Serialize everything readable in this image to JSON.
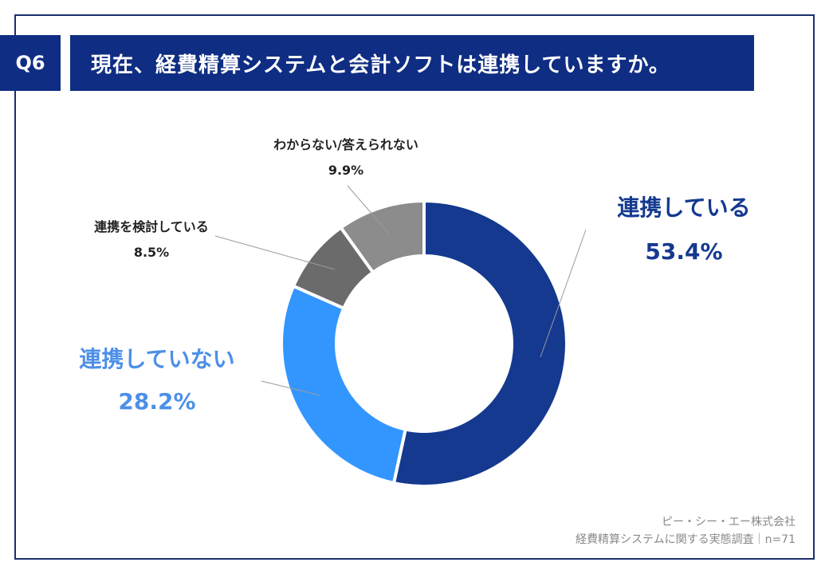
{
  "header": {
    "question_number": "Q6",
    "title": "現在、経費精算システムと会計ソフトは連携していますか。"
  },
  "chart_data": {
    "type": "pie",
    "donut": true,
    "title": "現在、経費精算システムと会計ソフトは連携していますか。",
    "slices": [
      {
        "label": "連携している",
        "value": 53.4,
        "value_label": "53.4%",
        "color": "#14398f",
        "label_color": "#14398f"
      },
      {
        "label": "連携していない",
        "value": 28.2,
        "value_label": "28.2%",
        "color": "#3396ff",
        "label_color": "#4d8fe8"
      },
      {
        "label": "連携を検討している",
        "value": 8.5,
        "value_label": "8.5%",
        "color": "#6b6b6b",
        "label_color": "#222222"
      },
      {
        "label": "わからない/答えられない",
        "value": 9.9,
        "value_label": "9.9%",
        "color": "#8c8c8c",
        "label_color": "#222222"
      }
    ]
  },
  "footer": {
    "company": "ピー・シー・エー株式会社",
    "survey": "経費精算システムに関する実態調査｜n=71"
  }
}
